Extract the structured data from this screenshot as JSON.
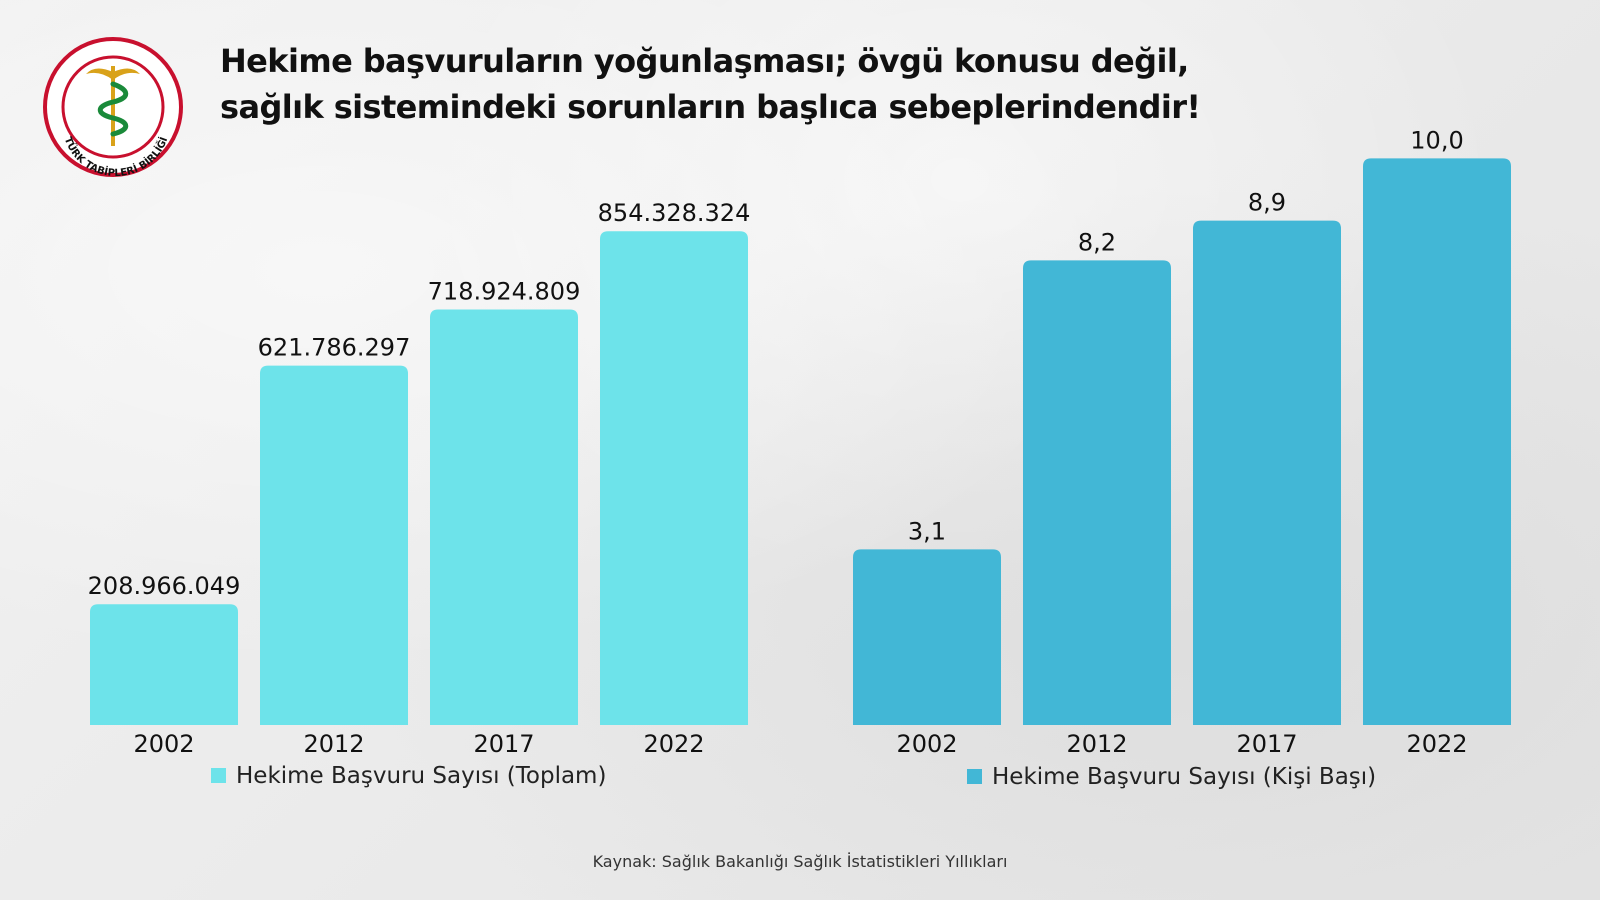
{
  "header": {
    "title_line1": "Hekime başvuruların yoğunlaşması; övgü konusu değil,",
    "title_line2": "sağlık sistemindeki sorunların başlıca sebeplerindendir!"
  },
  "logo": {
    "text": "TÜRK TABİPLERİ BİRLİĞİ",
    "colors": {
      "ring": "#c8102e",
      "snake": "#1a8a3a",
      "gold": "#d9a21a"
    }
  },
  "chart_data": [
    {
      "type": "bar",
      "categories": [
        "2002",
        "2012",
        "2017",
        "2022"
      ],
      "series": [
        {
          "name": "Hekime Başvuru Sayısı (Toplam)",
          "values": [
            208966049,
            621786297,
            718924809,
            854328324
          ],
          "color": "#6de3ea"
        }
      ],
      "data_labels": [
        "208.966.049",
        "621.786.297",
        "718.924.809",
        "854.328.324"
      ],
      "ylim": [
        0,
        1000000000
      ],
      "legend": "bottom-left",
      "grid": false
    },
    {
      "type": "bar",
      "categories": [
        "2002",
        "2012",
        "2017",
        "2022"
      ],
      "series": [
        {
          "name": "Hekime Başvuru Sayısı (Kişi Başı)",
          "values": [
            3.1,
            8.2,
            8.9,
            10.0
          ],
          "color": "#42b7d6"
        }
      ],
      "data_labels": [
        "3,1",
        "8,2",
        "8,9",
        "10,0"
      ],
      "ylim": [
        0,
        10.2
      ],
      "legend": "bottom-left",
      "grid": false
    }
  ],
  "footer": {
    "source": "Kaynak: Sağlık Bakanlığı Sağlık İstatistikleri Yıllıkları"
  }
}
